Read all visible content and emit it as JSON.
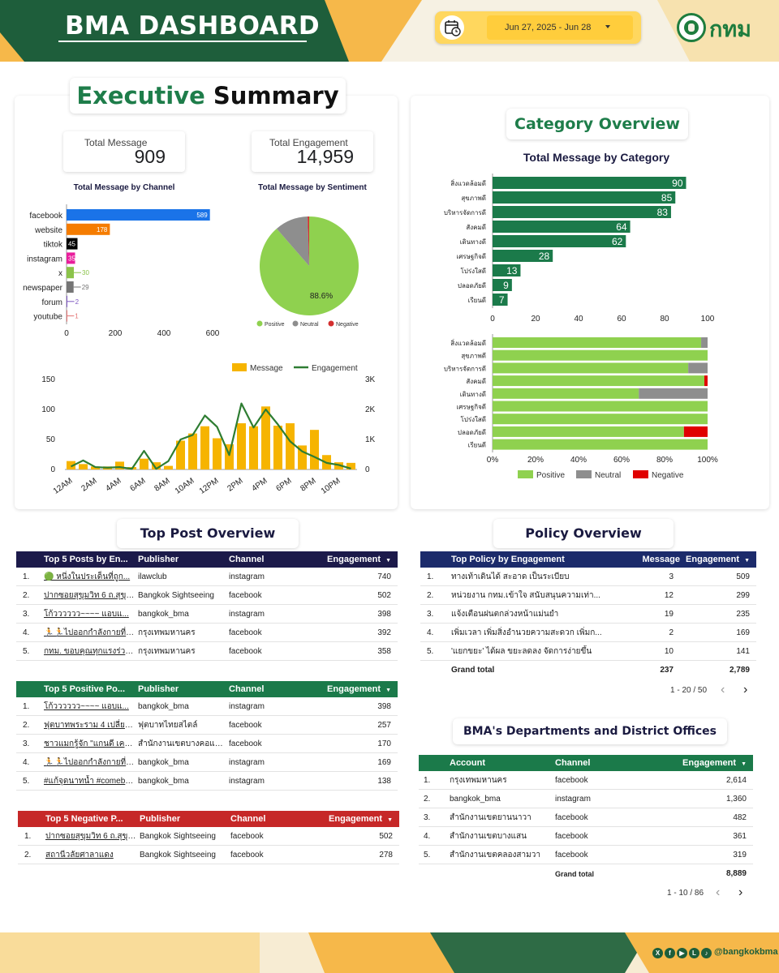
{
  "header": {
    "title": "BMA DASHBOARD",
    "date_range": "Jun 27, 2025 - Jun 28",
    "logo_text": "กทม",
    "colors": {
      "green": "#1e5e3b",
      "accent": "#f6b84a",
      "date_bg": "#ffd75e"
    }
  },
  "executive_summary": {
    "title_green": "Executive",
    "title_black": "Summary",
    "total_message_label": "Total Message",
    "total_message_value": "909",
    "total_engagement_label": "Total Engagement",
    "total_engagement_value": "14,959"
  },
  "category_overview": {
    "title": "Category Overview"
  },
  "top_post_overview": {
    "title": "Top Post Overview"
  },
  "policy_overview": {
    "title": "Policy Overview"
  },
  "departments": {
    "title": "BMA's Departments and District Offices"
  },
  "chart_data": [
    {
      "id": "channel",
      "type": "bar",
      "orientation": "horizontal",
      "title": "Total Message by Channel",
      "categories": [
        "facebook",
        "website",
        "tiktok",
        "instagram",
        "x",
        "newspaper",
        "forum",
        "youtube"
      ],
      "values": [
        589,
        178,
        45,
        35,
        30,
        29,
        2,
        1
      ],
      "colors": [
        "#1a73e8",
        "#f57c00",
        "#000000",
        "#e91e9c",
        "#8bc34a",
        "#757575",
        "#7e57c2",
        "#e57373"
      ],
      "xticks": [
        "0",
        "200",
        "400",
        "600"
      ],
      "xlim": [
        0,
        600
      ]
    },
    {
      "id": "sentiment",
      "type": "pie",
      "title": "Total Message by Sentiment",
      "labels": [
        "Positive",
        "Neutral",
        "Negative"
      ],
      "values": [
        88.6,
        10.9,
        0.5
      ],
      "colors": [
        "#8fd14f",
        "#8e8e8e",
        "#d32f2f"
      ],
      "data_label": "88.6%"
    },
    {
      "id": "hourly",
      "type": "bar",
      "combo": "bar+line",
      "series": [
        {
          "name": "Message",
          "color": "#f6b400",
          "values": [
            14,
            9,
            5,
            5,
            13,
            4,
            18,
            12,
            6,
            48,
            60,
            72,
            52,
            42,
            77,
            72,
            105,
            73,
            77,
            40,
            66,
            24,
            12,
            11
          ]
        },
        {
          "name": "Engagement",
          "color": "#2e7d32",
          "values": [
            100,
            300,
            80,
            60,
            80,
            20,
            620,
            20,
            280,
            1000,
            1150,
            1800,
            1420,
            480,
            2200,
            1400,
            2000,
            1500,
            940,
            600,
            420,
            220,
            150,
            30
          ]
        }
      ],
      "xticks": [
        "12AM",
        "2AM",
        "4AM",
        "6AM",
        "8AM",
        "10AM",
        "12PM",
        "2PM",
        "4PM",
        "6PM",
        "8PM",
        "10PM"
      ],
      "yticks_left": [
        "0",
        "50",
        "100",
        "150"
      ],
      "yticks_right": [
        "0",
        "1K",
        "2K",
        "3K"
      ],
      "ylim_left": [
        0,
        150
      ],
      "ylim_right": [
        0,
        3000
      ]
    },
    {
      "id": "category",
      "type": "bar",
      "orientation": "horizontal",
      "title": "Total Message by Category",
      "categories": [
        "สิ่งแวดล้อมดี",
        "สุขภาพดี",
        "บริหารจัดการดี",
        "สังคมดี",
        "เดินทางดี",
        "เศรษฐกิจดี",
        "โปร่งใสดี",
        "ปลอดภัยดี",
        "เรียนดี"
      ],
      "values": [
        90,
        85,
        83,
        64,
        62,
        28,
        13,
        9,
        7
      ],
      "color": "#1b7a4a",
      "xticks": [
        "0",
        "20",
        "40",
        "60",
        "80",
        "100"
      ],
      "xlim": [
        0,
        100
      ]
    },
    {
      "id": "category_sentiment",
      "type": "bar",
      "orientation": "horizontal",
      "stacked": "100%",
      "categories": [
        "สิ่งแวดล้อมดี",
        "สุขภาพดี",
        "บริหารจัดการดี",
        "สังคมดี",
        "เดินทางดี",
        "เศรษฐกิจดี",
        "โปร่งใสดี",
        "ปลอดภัยดี",
        "เรียนดี"
      ],
      "series": [
        {
          "name": "Positive",
          "color": "#8fd14f",
          "values": [
            97,
            100,
            91,
            98.5,
            68,
            100,
            100,
            89,
            100
          ]
        },
        {
          "name": "Neutral",
          "color": "#8e8e8e",
          "values": [
            3,
            0,
            9,
            0,
            32,
            0,
            0,
            0,
            0
          ]
        },
        {
          "name": "Negative",
          "color": "#e00000",
          "values": [
            0,
            0,
            0,
            1.5,
            0,
            0,
            0,
            11,
            0
          ]
        }
      ],
      "xticks": [
        "0%",
        "20%",
        "40%",
        "60%",
        "80%",
        "100%"
      ]
    }
  ],
  "top5_posts": {
    "headers": [
      "Top 5 Posts by En...",
      "Publisher",
      "Channel",
      "Engagement"
    ],
    "rows": [
      [
        "1.",
        "🟢 หนึ่งในประเด็นที่ถูก...",
        "ilawclub",
        "instagram",
        "740"
      ],
      [
        "2.",
        "ปากซอยสุขุมวิท 6 ถ.สุขุม...",
        "Bangkok Sightseeing",
        "facebook",
        "502"
      ],
      [
        "3.",
        "โก้วววววว~~~~ แอบแ...",
        "bangkok_bma",
        "instagram",
        "398"
      ],
      [
        "4.",
        "🏃🏃ไปออกกำลังกายที่ส...",
        "กรุงเทพมหานคร",
        "facebook",
        "392"
      ],
      [
        "5.",
        "กทม. ขอบคุณทุกแรงร่วมใ...",
        "กรุงเทพมหานคร",
        "facebook",
        "358"
      ]
    ]
  },
  "top5_positive": {
    "headers": [
      "Top 5 Positive Po...",
      "Publisher",
      "Channel",
      "Engagement"
    ],
    "rows": [
      [
        "1.",
        "โก้วววววว~~~~ แอบแ...",
        "bangkok_bma",
        "instagram",
        "398"
      ],
      [
        "2.",
        "ฟุตบาทพระราม 4 เปลี่ยนไ...",
        "ฟุตบาทไทยสไตล์",
        "facebook",
        "257"
      ],
      [
        "3.",
        "ชาวแมกรู้จัก \"แกนดี เครือ...",
        "สำนักงานเขตบางคอแหลม",
        "facebook",
        "170"
      ],
      [
        "4.",
        "🏃🏃ไปออกกำลังกายที่ส...",
        "bangkok_bma",
        "instagram",
        "169"
      ],
      [
        "5.",
        "#แก้จุดนาทน้ำ #comeba...",
        "bangkok_bma",
        "instagram",
        "138"
      ]
    ]
  },
  "top5_negative": {
    "headers": [
      "Top 5 Negative P...",
      "Publisher",
      "Channel",
      "Engagement"
    ],
    "rows": [
      [
        "1.",
        "ปากซอยสุขุมวิท 6 ถ.สุขุม...",
        "Bangkok Sightseeing",
        "facebook",
        "502"
      ],
      [
        "2.",
        "สถานีวลัยศาลาแดง",
        "Bangkok Sightseeing",
        "facebook",
        "278"
      ]
    ]
  },
  "policy_table": {
    "headers": [
      "Top Policy by Engagement",
      "Message",
      "Engagement"
    ],
    "rows": [
      [
        "1.",
        "ทางเท้าเดินได้ สะอาด เป็นระเบียบ",
        "3",
        "509"
      ],
      [
        "2.",
        "หน่วยงาน กทม.เข้าใจ สนับสนุนความเท่า...",
        "12",
        "299"
      ],
      [
        "3.",
        "แจ้งเตือนฝนตกล่วงหน้าแม่นยำ",
        "19",
        "235"
      ],
      [
        "4.",
        "เพิ่มเวลา เพิ่มสิ่งอำนวยความสะดวก เพิ่มก...",
        "2",
        "169"
      ],
      [
        "5.",
        "'แยกขยะ' ได้ผล ขยะลดลง จัดการง่ายขึ้น",
        "10",
        "141"
      ]
    ],
    "total_label": "Grand total",
    "total_message": "237",
    "total_engagement": "2,789",
    "pager": "1 - 20 / 50"
  },
  "dept_table": {
    "headers": [
      "Account",
      "Channel",
      "Engagement"
    ],
    "rows": [
      [
        "1.",
        "กรุงเทพมหานคร",
        "facebook",
        "2,614"
      ],
      [
        "2.",
        "bangkok_bma",
        "instagram",
        "1,360"
      ],
      [
        "3.",
        "สำนักงานเขตยานนาวา",
        "facebook",
        "482"
      ],
      [
        "4.",
        "สำนักงานเขตบางแสน",
        "facebook",
        "361"
      ],
      [
        "5.",
        "สำนักงานเขตคลองสามวา",
        "facebook",
        "319"
      ]
    ],
    "total_label": "Grand total",
    "total_engagement": "8,889",
    "pager": "1 - 10 / 86"
  },
  "footer": {
    "handle": "@bangkokbma",
    "social_icons": [
      "x-icon",
      "facebook-icon",
      "youtube-icon",
      "line-icon",
      "tiktok-icon"
    ]
  }
}
